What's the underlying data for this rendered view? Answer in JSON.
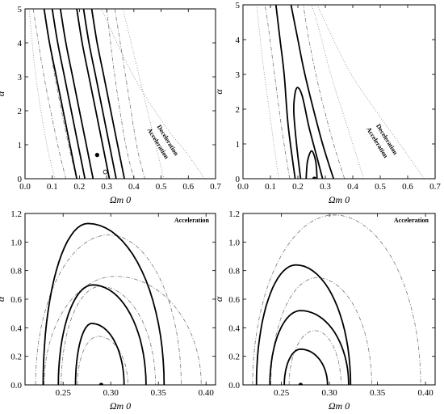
{
  "chart_data": [
    {
      "type": "contour",
      "panel": "top-left",
      "xlabel": "Ωm 0",
      "ylabel": "α",
      "xlim": [
        0.0,
        0.7
      ],
      "ylim": [
        0,
        5
      ],
      "x_ticks": [
        "0.0",
        "0.1",
        "0.2",
        "0.3",
        "0.4",
        "0.5",
        "0.6",
        "0.7"
      ],
      "y_ticks": [
        "0",
        "1",
        "2",
        "3",
        "4",
        "5"
      ],
      "annotations": [
        "Deceleration",
        "Acceleration"
      ],
      "best_fit_filled": [
        0.265,
        0.7
      ],
      "best_fit_open": [
        0.295,
        0.2
      ],
      "solid_contours": [
        [
          [
            0.13,
            5.0
          ],
          [
            0.15,
            4.0
          ],
          [
            0.175,
            3.0
          ],
          [
            0.2,
            2.0
          ],
          [
            0.225,
            1.0
          ],
          [
            0.25,
            0.0
          ]
        ],
        [
          [
            0.19,
            5.0
          ],
          [
            0.21,
            4.0
          ],
          [
            0.235,
            3.0
          ],
          [
            0.26,
            2.0
          ],
          [
            0.285,
            1.0
          ],
          [
            0.31,
            0.0
          ]
        ],
        [
          [
            0.1,
            5.0
          ],
          [
            0.12,
            4.0
          ],
          [
            0.145,
            3.0
          ],
          [
            0.17,
            2.0
          ],
          [
            0.195,
            1.0
          ],
          [
            0.22,
            0.0
          ]
        ],
        [
          [
            0.215,
            5.0
          ],
          [
            0.235,
            4.0
          ],
          [
            0.26,
            3.0
          ],
          [
            0.285,
            2.0
          ],
          [
            0.31,
            1.0
          ],
          [
            0.335,
            0.0
          ]
        ],
        [
          [
            0.07,
            5.0
          ],
          [
            0.09,
            4.0
          ],
          [
            0.115,
            3.0
          ],
          [
            0.14,
            2.0
          ],
          [
            0.165,
            1.0
          ],
          [
            0.19,
            0.0
          ]
        ],
        [
          [
            0.245,
            5.0
          ],
          [
            0.265,
            4.0
          ],
          [
            0.29,
            3.0
          ],
          [
            0.315,
            2.0
          ],
          [
            0.34,
            1.0
          ],
          [
            0.365,
            0.0
          ]
        ]
      ],
      "dashdot_contours": [
        [
          [
            0.07,
            5.0
          ],
          [
            0.11,
            3.0
          ],
          [
            0.16,
            1.0
          ],
          [
            0.19,
            0.0
          ]
        ],
        [
          [
            0.3,
            5.0
          ],
          [
            0.33,
            3.0
          ],
          [
            0.37,
            1.0
          ],
          [
            0.4,
            0.0
          ]
        ],
        [
          [
            0.03,
            5.0
          ],
          [
            0.07,
            3.0
          ],
          [
            0.12,
            1.0
          ],
          [
            0.15,
            0.0
          ]
        ],
        [
          [
            0.33,
            5.0
          ],
          [
            0.37,
            3.0
          ],
          [
            0.41,
            1.0
          ],
          [
            0.44,
            0.0
          ]
        ]
      ],
      "dotted_contours": [
        [
          [
            0.015,
            5.0
          ],
          [
            0.04,
            3.0
          ],
          [
            0.08,
            1.0
          ],
          [
            0.11,
            0.0
          ]
        ],
        [
          [
            0.36,
            5.0
          ],
          [
            0.42,
            3.0
          ],
          [
            0.48,
            1.0
          ],
          [
            0.51,
            0.0
          ]
        ]
      ],
      "transition_line": [
        [
          0.28,
          5.0
        ],
        [
          0.4,
          3.0
        ],
        [
          0.52,
          1.5
        ],
        [
          0.59,
          0.8
        ],
        [
          0.66,
          0.0
        ]
      ]
    },
    {
      "type": "contour",
      "panel": "top-right",
      "xlabel": "Ωm 0",
      "ylabel": "α",
      "xlim": [
        0.0,
        0.7
      ],
      "ylim": [
        0,
        5
      ],
      "x_ticks": [
        "0.0",
        "0.1",
        "0.2",
        "0.3",
        "0.4",
        "0.5",
        "0.6",
        "0.7"
      ],
      "y_ticks": [
        "0",
        "1",
        "2",
        "3",
        "4",
        "5"
      ],
      "annotations": [
        "Deceleration",
        "Acceleration"
      ],
      "best_fit_filled": [
        0.26,
        0.0
      ],
      "solid_contours": [
        [
          [
            0.23,
            0.0
          ],
          [
            0.235,
            0.5
          ],
          [
            0.25,
            0.8
          ],
          [
            0.265,
            0.5
          ],
          [
            0.27,
            0.0
          ]
        ],
        [
          [
            0.21,
            0.0
          ],
          [
            0.195,
            1.0
          ],
          [
            0.185,
            2.0
          ],
          [
            0.195,
            2.6
          ],
          [
            0.215,
            2.4
          ],
          [
            0.24,
            1.5
          ],
          [
            0.27,
            0.6
          ],
          [
            0.29,
            0.0
          ]
        ],
        [
          [
            0.19,
            0.0
          ],
          [
            0.165,
            1.5
          ],
          [
            0.15,
            3.0
          ],
          [
            0.135,
            4.0
          ],
          [
            0.12,
            5.0
          ]
        ],
        [
          [
            0.33,
            0.0
          ],
          [
            0.29,
            1.0
          ],
          [
            0.25,
            2.2
          ],
          [
            0.22,
            3.2
          ],
          [
            0.2,
            4.0
          ],
          [
            0.175,
            5.0
          ]
        ]
      ],
      "dashdot_contours": [
        [
          [
            0.17,
            0.0
          ],
          [
            0.14,
            1.5
          ],
          [
            0.115,
            3.0
          ],
          [
            0.09,
            4.5
          ],
          [
            0.08,
            5.0
          ]
        ],
        [
          [
            0.37,
            0.0
          ],
          [
            0.33,
            1.0
          ],
          [
            0.28,
            2.5
          ],
          [
            0.24,
            4.0
          ],
          [
            0.22,
            5.0
          ]
        ]
      ],
      "dotted_contours": [
        [
          [
            0.13,
            0.0
          ],
          [
            0.095,
            2.0
          ],
          [
            0.07,
            3.5
          ],
          [
            0.05,
            5.0
          ]
        ],
        [
          [
            0.44,
            0.0
          ],
          [
            0.38,
            1.5
          ],
          [
            0.32,
            3.0
          ],
          [
            0.27,
            4.5
          ],
          [
            0.25,
            5.0
          ]
        ]
      ],
      "transition_line": [
        [
          0.27,
          5.0
        ],
        [
          0.38,
          3.2
        ],
        [
          0.48,
          2.0
        ],
        [
          0.58,
          0.9
        ],
        [
          0.66,
          0.0
        ]
      ]
    },
    {
      "type": "contour",
      "panel": "bottom-left",
      "xlabel": "Ωm 0",
      "ylabel": "α",
      "xlim": [
        0.21,
        0.41
      ],
      "ylim": [
        0,
        1.2
      ],
      "x_ticks": [
        "0.25",
        "0.30",
        "0.35",
        "0.40"
      ],
      "y_ticks": [
        "0.0",
        "0.2",
        "0.4",
        "0.6",
        "0.8",
        "1.0",
        "1.2"
      ],
      "annotations": [
        "Acceleration"
      ],
      "best_fit_filled": [
        0.29,
        0.0
      ],
      "ellipses_solid": [
        {
          "center": 0.28,
          "x_range": [
            0.263,
            0.314
          ],
          "peak": 0.43
        },
        {
          "center": 0.281,
          "x_range": [
            0.245,
            0.337
          ],
          "peak": 0.7
        },
        {
          "center": 0.276,
          "x_range": [
            0.229,
            0.356
          ],
          "peak": 1.13
        }
      ],
      "ellipses_dashdot": [
        {
          "center": 0.287,
          "x_range": [
            0.265,
            0.318
          ],
          "peak": 0.34
        },
        {
          "center": 0.289,
          "x_range": [
            0.248,
            0.347
          ],
          "peak": 0.69
        },
        {
          "center": 0.298,
          "x_range": [
            0.221,
            0.374
          ],
          "peak": 1.05
        }
      ],
      "ellipses_dashdot_outer": [
        {
          "center": 0.305,
          "x_range": [
            0.23,
            0.395
          ],
          "peak": 0.76
        }
      ]
    },
    {
      "type": "contour",
      "panel": "bottom-right",
      "xlabel": "Ωm 0",
      "ylabel": "α",
      "xlim": [
        0.21,
        0.41
      ],
      "ylim": [
        0,
        1.2
      ],
      "x_ticks": [
        "0.25",
        "0.30",
        "0.35",
        "0.40"
      ],
      "y_ticks": [
        "0.0",
        "0.2",
        "0.4",
        "0.6",
        "0.8",
        "1.0",
        "1.2"
      ],
      "annotations": [
        "Acceleration"
      ],
      "best_fit_filled": [
        0.27,
        0.0
      ],
      "ellipses_solid": [
        {
          "center": 0.27,
          "x_range": [
            0.253,
            0.298
          ],
          "peak": 0.25
        },
        {
          "center": 0.27,
          "x_range": [
            0.238,
            0.32
          ],
          "peak": 0.52
        },
        {
          "center": 0.265,
          "x_range": [
            0.224,
            0.322
          ],
          "peak": 0.84
        }
      ],
      "ellipses_dashdot": [
        {
          "center": 0.285,
          "x_range": [
            0.258,
            0.312
          ],
          "peak": 0.38
        },
        {
          "center": 0.287,
          "x_range": [
            0.239,
            0.344
          ],
          "peak": 0.75
        },
        {
          "center": 0.305,
          "x_range": [
            0.22,
            0.395
          ],
          "peak": 1.19
        }
      ],
      "ellipses_dashdot_outer": []
    }
  ]
}
